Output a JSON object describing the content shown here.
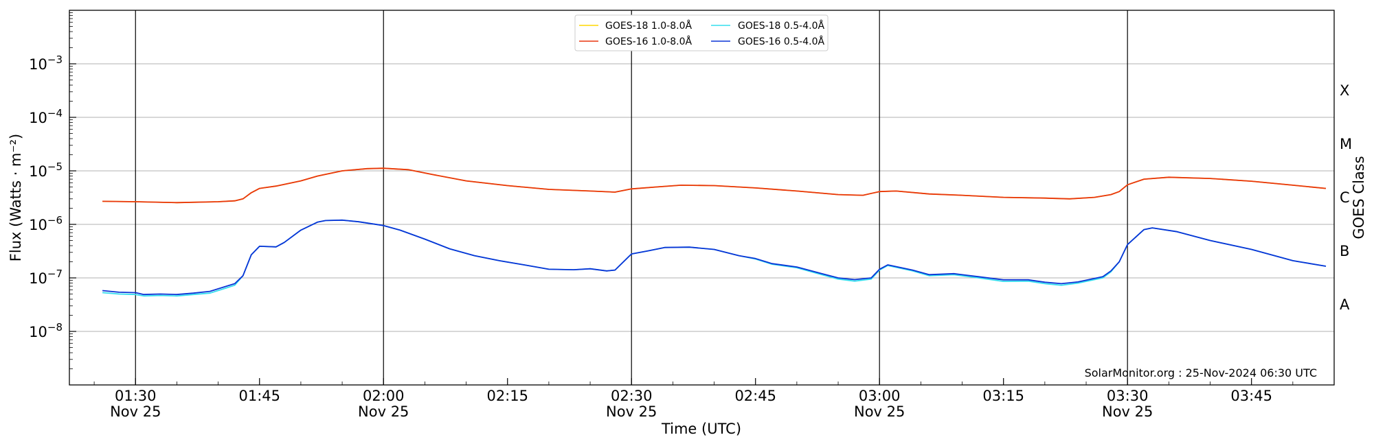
{
  "chart_data": {
    "type": "line",
    "title": "",
    "xlabel": "Time (UTC)",
    "ylabel": "Flux (Watts · m⁻²)",
    "ylabel_right": "GOES Class",
    "yscale": "log",
    "ylim": [
      1e-09,
      0.01
    ],
    "xlim": [
      "01:22",
      "03:55"
    ],
    "grid": "horizontal at each decade",
    "legend_position": "top-center",
    "credit": "SolarMonitor.org : 25-Nov-2024 06:30 UTC",
    "y_ticks": [
      {
        "value": 1e-08,
        "base": "10",
        "exp": "−8"
      },
      {
        "value": 1e-07,
        "base": "10",
        "exp": "−7"
      },
      {
        "value": 1e-06,
        "base": "10",
        "exp": "−6"
      },
      {
        "value": 1e-05,
        "base": "10",
        "exp": "−5"
      },
      {
        "value": 0.0001,
        "base": "10",
        "exp": "−4"
      },
      {
        "value": 0.001,
        "base": "10",
        "exp": "−3"
      }
    ],
    "x_ticks": [
      {
        "time": "01:30",
        "label": "01:30",
        "date": "Nov 25"
      },
      {
        "time": "01:45",
        "label": "01:45",
        "date": ""
      },
      {
        "time": "02:00",
        "label": "02:00",
        "date": "Nov 25"
      },
      {
        "time": "02:15",
        "label": "02:15",
        "date": ""
      },
      {
        "time": "02:30",
        "label": "02:30",
        "date": "Nov 25"
      },
      {
        "time": "02:45",
        "label": "02:45",
        "date": ""
      },
      {
        "time": "03:00",
        "label": "03:00",
        "date": "Nov 25"
      },
      {
        "time": "03:15",
        "label": "03:15",
        "date": ""
      },
      {
        "time": "03:30",
        "label": "03:30",
        "date": "Nov 25"
      },
      {
        "time": "03:45",
        "label": "03:45",
        "date": ""
      }
    ],
    "vertical_markers": [
      "01:30",
      "02:00",
      "02:30",
      "03:00",
      "03:30"
    ],
    "goes_classes": [
      {
        "label": "A",
        "value": 3.16e-08
      },
      {
        "label": "B",
        "value": 3.16e-07
      },
      {
        "label": "C",
        "value": 3.16e-06
      },
      {
        "label": "M",
        "value": 3.16e-05
      },
      {
        "label": "X",
        "value": 0.000316
      }
    ],
    "series": [
      {
        "name": "GOES-18 1.0-8.0Å",
        "color": "#ffd700",
        "points": [
          [
            "01:26",
            2.7e-06
          ],
          [
            "01:30",
            2.65e-06
          ],
          [
            "01:35",
            2.55e-06
          ],
          [
            "01:40",
            2.65e-06
          ],
          [
            "01:42",
            2.75e-06
          ],
          [
            "01:43",
            3e-06
          ],
          [
            "01:44",
            3.9e-06
          ],
          [
            "01:45",
            4.7e-06
          ],
          [
            "01:47",
            5.2e-06
          ],
          [
            "01:50",
            6.5e-06
          ],
          [
            "01:52",
            8e-06
          ],
          [
            "01:55",
            1e-05
          ],
          [
            "01:58",
            1.1e-05
          ],
          [
            "02:00",
            1.12e-05
          ],
          [
            "02:03",
            1.05e-05
          ],
          [
            "02:06",
            8.5e-06
          ],
          [
            "02:10",
            6.5e-06
          ],
          [
            "02:15",
            5.3e-06
          ],
          [
            "02:20",
            4.5e-06
          ],
          [
            "02:25",
            4.2e-06
          ],
          [
            "02:28",
            4e-06
          ],
          [
            "02:30",
            4.6e-06
          ],
          [
            "02:33",
            5e-06
          ],
          [
            "02:36",
            5.4e-06
          ],
          [
            "02:40",
            5.3e-06
          ],
          [
            "02:45",
            4.8e-06
          ],
          [
            "02:50",
            4.2e-06
          ],
          [
            "02:55",
            3.6e-06
          ],
          [
            "02:58",
            3.5e-06
          ],
          [
            "03:00",
            4.1e-06
          ],
          [
            "03:02",
            4.2e-06
          ],
          [
            "03:06",
            3.7e-06
          ],
          [
            "03:10",
            3.5e-06
          ],
          [
            "03:15",
            3.2e-06
          ],
          [
            "03:20",
            3.1e-06
          ],
          [
            "03:23",
            3e-06
          ],
          [
            "03:26",
            3.2e-06
          ],
          [
            "03:28",
            3.6e-06
          ],
          [
            "03:29",
            4.1e-06
          ],
          [
            "03:30",
            5.5e-06
          ],
          [
            "03:32",
            7e-06
          ],
          [
            "03:35",
            7.6e-06
          ],
          [
            "03:40",
            7.2e-06
          ],
          [
            "03:45",
            6.4e-06
          ],
          [
            "03:50",
            5.4e-06
          ],
          [
            "03:54",
            4.7e-06
          ]
        ]
      },
      {
        "name": "GOES-16 1.0-8.0Å",
        "color": "#e8350f",
        "points": [
          [
            "01:26",
            2.7e-06
          ],
          [
            "01:30",
            2.65e-06
          ],
          [
            "01:35",
            2.55e-06
          ],
          [
            "01:40",
            2.65e-06
          ],
          [
            "01:42",
            2.75e-06
          ],
          [
            "01:43",
            3e-06
          ],
          [
            "01:44",
            3.9e-06
          ],
          [
            "01:45",
            4.7e-06
          ],
          [
            "01:47",
            5.2e-06
          ],
          [
            "01:50",
            6.5e-06
          ],
          [
            "01:52",
            8e-06
          ],
          [
            "01:55",
            1e-05
          ],
          [
            "01:58",
            1.1e-05
          ],
          [
            "02:00",
            1.12e-05
          ],
          [
            "02:03",
            1.05e-05
          ],
          [
            "02:06",
            8.5e-06
          ],
          [
            "02:10",
            6.5e-06
          ],
          [
            "02:15",
            5.3e-06
          ],
          [
            "02:20",
            4.5e-06
          ],
          [
            "02:25",
            4.2e-06
          ],
          [
            "02:28",
            4e-06
          ],
          [
            "02:30",
            4.6e-06
          ],
          [
            "02:33",
            5e-06
          ],
          [
            "02:36",
            5.4e-06
          ],
          [
            "02:40",
            5.3e-06
          ],
          [
            "02:45",
            4.8e-06
          ],
          [
            "02:50",
            4.2e-06
          ],
          [
            "02:55",
            3.6e-06
          ],
          [
            "02:58",
            3.5e-06
          ],
          [
            "03:00",
            4.1e-06
          ],
          [
            "03:02",
            4.2e-06
          ],
          [
            "03:06",
            3.7e-06
          ],
          [
            "03:10",
            3.5e-06
          ],
          [
            "03:15",
            3.2e-06
          ],
          [
            "03:20",
            3.1e-06
          ],
          [
            "03:23",
            3e-06
          ],
          [
            "03:26",
            3.2e-06
          ],
          [
            "03:28",
            3.6e-06
          ],
          [
            "03:29",
            4.1e-06
          ],
          [
            "03:30",
            5.5e-06
          ],
          [
            "03:32",
            7e-06
          ],
          [
            "03:35",
            7.6e-06
          ],
          [
            "03:40",
            7.2e-06
          ],
          [
            "03:45",
            6.4e-06
          ],
          [
            "03:50",
            5.4e-06
          ],
          [
            "03:54",
            4.7e-06
          ]
        ]
      },
      {
        "name": "GOES-18 0.5-4.0Å",
        "color": "#33ddee",
        "points": [
          [
            "01:26",
            5.3e-08
          ],
          [
            "01:28",
            5e-08
          ],
          [
            "01:30",
            4.9e-08
          ],
          [
            "01:31",
            4.6e-08
          ],
          [
            "01:33",
            4.7e-08
          ],
          [
            "01:35",
            4.6e-08
          ],
          [
            "01:37",
            4.9e-08
          ],
          [
            "01:39",
            5.2e-08
          ],
          [
            "01:41",
            6.5e-08
          ],
          [
            "01:42",
            7.3e-08
          ],
          [
            "01:43",
            1.1e-07
          ],
          [
            "01:44",
            2.7e-07
          ],
          [
            "01:45",
            3.9e-07
          ],
          [
            "01:47",
            3.8e-07
          ],
          [
            "01:48",
            4.6e-07
          ],
          [
            "01:50",
            7.8e-07
          ],
          [
            "01:52",
            1.1e-06
          ],
          [
            "01:53",
            1.18e-06
          ],
          [
            "01:55",
            1.2e-06
          ],
          [
            "01:57",
            1.12e-06
          ],
          [
            "02:00",
            9.5e-07
          ],
          [
            "02:02",
            7.8e-07
          ],
          [
            "02:05",
            5.3e-07
          ],
          [
            "02:08",
            3.5e-07
          ],
          [
            "02:11",
            2.6e-07
          ],
          [
            "02:14",
            2.1e-07
          ],
          [
            "02:17",
            1.75e-07
          ],
          [
            "02:20",
            1.45e-07
          ],
          [
            "02:23",
            1.42e-07
          ],
          [
            "02:25",
            1.48e-07
          ],
          [
            "02:27",
            1.35e-07
          ],
          [
            "02:28",
            1.4e-07
          ],
          [
            "02:30",
            2.8e-07
          ],
          [
            "02:32",
            3.2e-07
          ],
          [
            "02:34",
            3.7e-07
          ],
          [
            "02:37",
            3.75e-07
          ],
          [
            "02:40",
            3.4e-07
          ],
          [
            "02:43",
            2.6e-07
          ],
          [
            "02:45",
            2.25e-07
          ],
          [
            "02:47",
            1.8e-07
          ],
          [
            "02:50",
            1.55e-07
          ],
          [
            "02:53",
            1.15e-07
          ],
          [
            "02:55",
            9.5e-08
          ],
          [
            "02:57",
            8.7e-08
          ],
          [
            "02:59",
            9.5e-08
          ],
          [
            "03:00",
            1.4e-07
          ],
          [
            "03:01",
            1.7e-07
          ],
          [
            "03:04",
            1.35e-07
          ],
          [
            "03:06",
            1.1e-07
          ],
          [
            "03:09",
            1.15e-07
          ],
          [
            "03:12",
            1e-07
          ],
          [
            "03:15",
            8.6e-08
          ],
          [
            "03:18",
            8.7e-08
          ],
          [
            "03:20",
            7.8e-08
          ],
          [
            "03:22",
            7.3e-08
          ],
          [
            "03:24",
            8e-08
          ],
          [
            "03:27",
            1e-07
          ],
          [
            "03:28",
            1.3e-07
          ],
          [
            "03:29",
            2e-07
          ],
          [
            "03:30",
            4.2e-07
          ],
          [
            "03:32",
            8e-07
          ],
          [
            "03:33",
            8.6e-07
          ],
          [
            "03:36",
            7.3e-07
          ],
          [
            "03:40",
            5e-07
          ],
          [
            "03:45",
            3.4e-07
          ],
          [
            "03:50",
            2.1e-07
          ],
          [
            "03:54",
            1.65e-07
          ]
        ]
      },
      {
        "name": "GOES-16 0.5-4.0Å",
        "color": "#0a33d6",
        "points": [
          [
            "01:26",
            5.8e-08
          ],
          [
            "01:28",
            5.4e-08
          ],
          [
            "01:30",
            5.3e-08
          ],
          [
            "01:31",
            4.9e-08
          ],
          [
            "01:33",
            5e-08
          ],
          [
            "01:35",
            4.9e-08
          ],
          [
            "01:37",
            5.2e-08
          ],
          [
            "01:39",
            5.6e-08
          ],
          [
            "01:41",
            7e-08
          ],
          [
            "01:42",
            7.8e-08
          ],
          [
            "01:43",
            1.1e-07
          ],
          [
            "01:44",
            2.7e-07
          ],
          [
            "01:45",
            3.9e-07
          ],
          [
            "01:47",
            3.8e-07
          ],
          [
            "01:48",
            4.6e-07
          ],
          [
            "01:50",
            7.8e-07
          ],
          [
            "01:52",
            1.1e-06
          ],
          [
            "01:53",
            1.18e-06
          ],
          [
            "01:55",
            1.2e-06
          ],
          [
            "01:57",
            1.12e-06
          ],
          [
            "02:00",
            9.5e-07
          ],
          [
            "02:02",
            7.8e-07
          ],
          [
            "02:05",
            5.3e-07
          ],
          [
            "02:08",
            3.5e-07
          ],
          [
            "02:11",
            2.6e-07
          ],
          [
            "02:14",
            2.1e-07
          ],
          [
            "02:17",
            1.75e-07
          ],
          [
            "02:20",
            1.45e-07
          ],
          [
            "02:23",
            1.42e-07
          ],
          [
            "02:25",
            1.48e-07
          ],
          [
            "02:27",
            1.35e-07
          ],
          [
            "02:28",
            1.4e-07
          ],
          [
            "02:30",
            2.8e-07
          ],
          [
            "02:32",
            3.2e-07
          ],
          [
            "02:34",
            3.7e-07
          ],
          [
            "02:37",
            3.75e-07
          ],
          [
            "02:40",
            3.4e-07
          ],
          [
            "02:43",
            2.6e-07
          ],
          [
            "02:45",
            2.3e-07
          ],
          [
            "02:47",
            1.85e-07
          ],
          [
            "02:50",
            1.6e-07
          ],
          [
            "02:53",
            1.2e-07
          ],
          [
            "02:55",
            1e-07
          ],
          [
            "02:57",
            9.3e-08
          ],
          [
            "02:59",
            1e-07
          ],
          [
            "03:00",
            1.45e-07
          ],
          [
            "03:01",
            1.75e-07
          ],
          [
            "03:04",
            1.4e-07
          ],
          [
            "03:06",
            1.15e-07
          ],
          [
            "03:09",
            1.2e-07
          ],
          [
            "03:12",
            1.05e-07
          ],
          [
            "03:15",
            9.2e-08
          ],
          [
            "03:18",
            9.2e-08
          ],
          [
            "03:20",
            8.3e-08
          ],
          [
            "03:22",
            7.8e-08
          ],
          [
            "03:24",
            8.4e-08
          ],
          [
            "03:27",
            1.05e-07
          ],
          [
            "03:28",
            1.35e-07
          ],
          [
            "03:29",
            2e-07
          ],
          [
            "03:30",
            4.2e-07
          ],
          [
            "03:32",
            8e-07
          ],
          [
            "03:33",
            8.6e-07
          ],
          [
            "03:36",
            7.3e-07
          ],
          [
            "03:40",
            5e-07
          ],
          [
            "03:45",
            3.4e-07
          ],
          [
            "03:50",
            2.1e-07
          ],
          [
            "03:54",
            1.65e-07
          ]
        ]
      }
    ]
  }
}
